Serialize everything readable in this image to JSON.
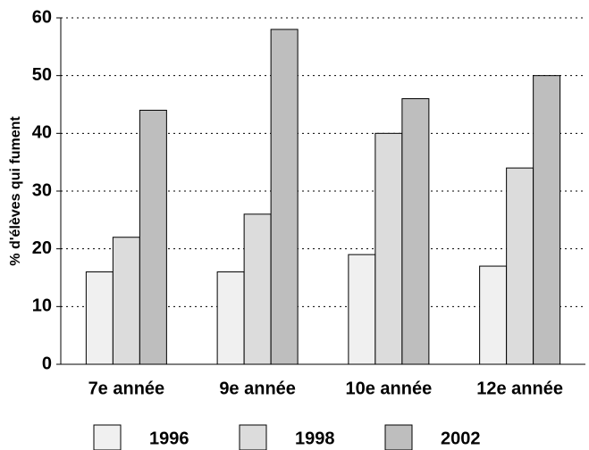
{
  "chart_data": {
    "type": "bar",
    "y_label": "% d'élèves qui fument",
    "categories": [
      "7e année",
      "9e année",
      "10e année",
      "12e année"
    ],
    "series": [
      {
        "name": "1996",
        "color": "#f0f0f0",
        "values": [
          16,
          16,
          19,
          17
        ]
      },
      {
        "name": "1998",
        "color": "#dcdcdc",
        "values": [
          22,
          26,
          40,
          34
        ]
      },
      {
        "name": "2002",
        "color": "#bebebe",
        "values": [
          44,
          58,
          46,
          50
        ]
      }
    ],
    "ylim": [
      0,
      60
    ],
    "yticks": [
      0,
      10,
      20,
      30,
      40,
      50,
      60
    ],
    "grid": true
  }
}
